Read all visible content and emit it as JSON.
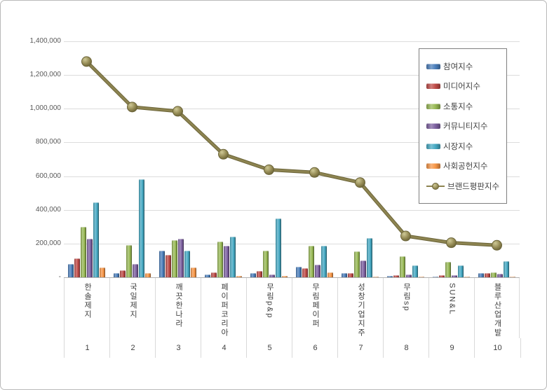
{
  "chart_data": {
    "type": "bar",
    "title": "",
    "xlabel": "",
    "ylabel": "",
    "ylim": [
      0,
      1400000
    ],
    "y_tick_step": 200000,
    "y_tick_labels": [
      "1,400,000",
      "1,200,000",
      "1,000,000",
      "800,000",
      "600,000",
      "400,000",
      "200,000",
      "-"
    ],
    "grid": true,
    "legend_position": "top-right",
    "categories": [
      "한솔제지",
      "국일제지",
      "깨끗한나라",
      "페이퍼코리아",
      "무림p&p",
      "무림페이퍼",
      "성창기업지주",
      "무림sp",
      "SUN&L",
      "블루산업개발"
    ],
    "rank_labels": [
      "1",
      "2",
      "3",
      "4",
      "5",
      "6",
      "7",
      "8",
      "9",
      "10"
    ],
    "series": [
      {
        "name": "참여지수",
        "type": "bar",
        "color": "#4a7ebb",
        "values": [
          80000,
          25000,
          157000,
          15000,
          25000,
          64000,
          27000,
          8000,
          5000,
          23000
        ]
      },
      {
        "name": "미디어지수",
        "type": "bar",
        "color": "#bf4b47",
        "values": [
          114000,
          42000,
          133000,
          30000,
          36000,
          55000,
          26000,
          13000,
          13000,
          23000
        ]
      },
      {
        "name": "소통지수",
        "type": "bar",
        "color": "#98b954",
        "values": [
          300000,
          190000,
          222000,
          212000,
          158000,
          185000,
          155000,
          125000,
          93000,
          31000
        ]
      },
      {
        "name": "커뮤니티지수",
        "type": "bar",
        "color": "#7d60a0",
        "values": [
          230000,
          78000,
          230000,
          185000,
          15000,
          75000,
          100000,
          17000,
          14000,
          22000
        ]
      },
      {
        "name": "시장지수",
        "type": "bar",
        "color": "#45a9c3",
        "values": [
          444000,
          583000,
          157000,
          240000,
          349000,
          185000,
          232000,
          72000,
          72000,
          97000
        ]
      },
      {
        "name": "사회공헌지수",
        "type": "bar",
        "color": "#f79646",
        "values": [
          57000,
          27000,
          60000,
          7000,
          9000,
          30000,
          5000,
          5000,
          4000,
          4000
        ]
      },
      {
        "name": "브랜드평판지수",
        "type": "line",
        "color": "#8d8451",
        "marker_fill": "#a59d66",
        "marker_edge": "#6b6438",
        "values": [
          1280000,
          1010000,
          985000,
          730000,
          638000,
          622000,
          562000,
          245000,
          205000,
          190000
        ]
      }
    ]
  }
}
